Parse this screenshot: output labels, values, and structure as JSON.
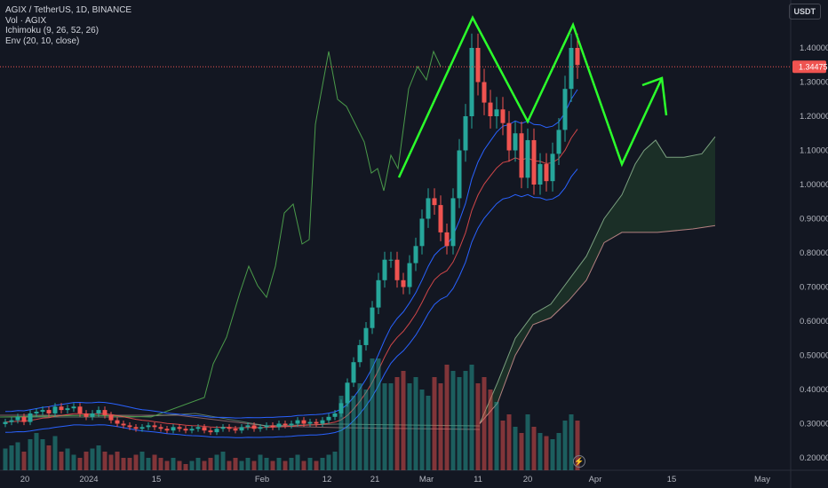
{
  "legend": {
    "symbol": "AGIX / TetherUS, 1D, BINANCE",
    "volume": "Vol · AGIX",
    "ichimoku": "Ichimoku (9, 26, 52, 26)",
    "envelope": "Env (20, 10, close)"
  },
  "currency_button": "USDT",
  "last_price_label": "1.34475",
  "colors": {
    "background": "#131722",
    "up": "#26a69a",
    "down": "#ef5350",
    "pattern": "#2bff2b",
    "lagging": "#4a9a4a",
    "cloud_fill": "#1f3a2a"
  },
  "chart_data": {
    "type": "candlestick",
    "title": "AGIX / TetherUS, 1D, BINANCE",
    "y_axis": {
      "ticks": [
        "1.40000",
        "1.30000",
        "1.20000",
        "1.10000",
        "1.00000",
        "0.90000",
        "0.80000",
        "0.70000",
        "0.60000",
        "0.50000",
        "0.40000",
        "0.30000",
        "0.20000"
      ],
      "range": [
        0.17,
        1.52
      ]
    },
    "x_axis": {
      "ticks": [
        "20",
        "2024",
        "15",
        "Feb",
        "12",
        "21",
        "Mar",
        "11",
        "20",
        "Apr",
        "15",
        "May"
      ]
    },
    "last_price": 1.34475,
    "candle_values": [
      0.305,
      0.31,
      0.32,
      0.305,
      0.33,
      0.335,
      0.34,
      0.33,
      0.35,
      0.34,
      0.345,
      0.35,
      0.33,
      0.32,
      0.33,
      0.34,
      0.325,
      0.31,
      0.3,
      0.295,
      0.29,
      0.285,
      0.29,
      0.295,
      0.29,
      0.285,
      0.28,
      0.29,
      0.285,
      0.28,
      0.285,
      0.29,
      0.28,
      0.275,
      0.285,
      0.29,
      0.285,
      0.28,
      0.29,
      0.295,
      0.285,
      0.29,
      0.295,
      0.29,
      0.3,
      0.295,
      0.3,
      0.31,
      0.3,
      0.305,
      0.3,
      0.31,
      0.32,
      0.33,
      0.36,
      0.42,
      0.48,
      0.53,
      0.58,
      0.64,
      0.72,
      0.78,
      0.78,
      0.72,
      0.7,
      0.77,
      0.82,
      0.9,
      0.96,
      0.94,
      0.86,
      0.82,
      0.96,
      1.1,
      1.2,
      1.4,
      1.3,
      1.24,
      1.2,
      1.22,
      1.18,
      1.1,
      1.15,
      1.02,
      1.13,
      1.0,
      1.06,
      1.01,
      1.09,
      1.16,
      1.28,
      1.4,
      1.35
    ],
    "volume_values": [
      0.35,
      0.4,
      0.45,
      0.3,
      0.5,
      0.6,
      0.5,
      0.4,
      0.55,
      0.3,
      0.35,
      0.25,
      0.2,
      0.3,
      0.35,
      0.4,
      0.3,
      0.25,
      0.3,
      0.2,
      0.2,
      0.25,
      0.3,
      0.2,
      0.25,
      0.2,
      0.15,
      0.2,
      0.15,
      0.1,
      0.15,
      0.2,
      0.15,
      0.2,
      0.25,
      0.3,
      0.15,
      0.2,
      0.15,
      0.2,
      0.15,
      0.25,
      0.2,
      0.15,
      0.2,
      0.15,
      0.2,
      0.25,
      0.15,
      0.2,
      0.15,
      0.2,
      0.25,
      0.3,
      1.2,
      1.1,
      1.2,
      1.4,
      1.3,
      1.8,
      1.8,
      1.4,
      1.4,
      1.5,
      1.6,
      1.4,
      1.5,
      1.3,
      1.2,
      1.5,
      1.4,
      1.7,
      1.6,
      1.5,
      1.6,
      1.7,
      1.4,
      1.5,
      1.3,
      1.1,
      0.8,
      0.9,
      0.7,
      0.6,
      0.9,
      0.7,
      0.6,
      0.55,
      0.5,
      0.6,
      0.8,
      0.9,
      0.8
    ],
    "pattern_points": [
      [
        449,
        200
      ],
      [
        532,
        20
      ],
      [
        594,
        137
      ],
      [
        645,
        28
      ],
      [
        700,
        185
      ],
      [
        745,
        88
      ]
    ],
    "pattern_labels": "hand-drawn double-top / M pattern"
  }
}
